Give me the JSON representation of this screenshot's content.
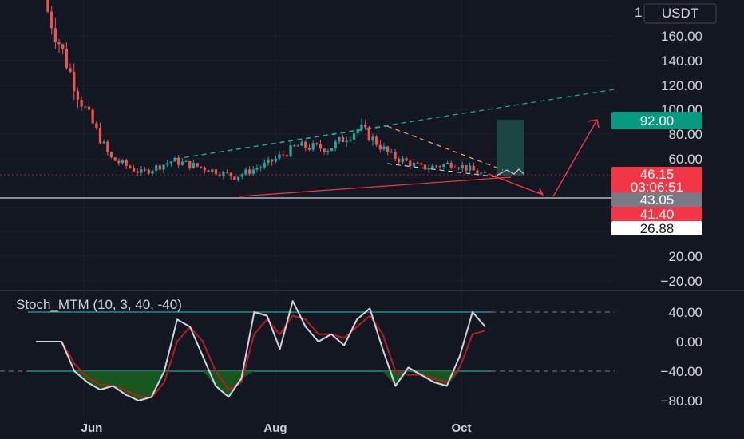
{
  "currency_badge": "USDT",
  "price_axis_top_partial": "1",
  "chart_data": [
    {
      "type": "candlestick",
      "title": "",
      "yticks": [
        "160.00",
        "140.00",
        "120.00",
        "100.00",
        "80.00",
        "60.00",
        "20.00",
        "−20.00",
        "−40.00"
      ],
      "ylim": [
        -50,
        205
      ],
      "xticks": [
        "Jun",
        "Aug",
        "Oct"
      ],
      "price_tags": {
        "target": "92.00",
        "current": "46.15",
        "countdown": "03:06:51",
        "support": "43.05",
        "low": "41.40",
        "bottom": "26.88"
      },
      "colors": {
        "up": "#26a69a",
        "down": "#ef5350",
        "target_tag": "#089981",
        "current_tag": "#f23645",
        "support_tag": "#787b86"
      },
      "series_close_approx": [
        {
          "t": "May-late",
          "close": 180
        },
        {
          "t": "Jun",
          "close": 110
        },
        {
          "t": "Jun-mid",
          "close": 60
        },
        {
          "t": "Jul-early",
          "close": 48
        },
        {
          "t": "Jul-early",
          "close": 58
        },
        {
          "t": "Jul-mid",
          "close": 52
        },
        {
          "t": "Jul-late",
          "close": 45
        },
        {
          "t": "Aug",
          "close": 55
        },
        {
          "t": "Aug-mid",
          "close": 70
        },
        {
          "t": "Sep-early",
          "close": 68
        },
        {
          "t": "Sep-mid",
          "close": 85
        },
        {
          "t": "Sep-mid",
          "close": 62
        },
        {
          "t": "Sep-late",
          "close": 52
        },
        {
          "t": "Oct",
          "close": 56
        },
        {
          "t": "Oct",
          "close": 46.15
        }
      ]
    },
    {
      "type": "line",
      "title": "Stoch_MTM (10, 3, 40, -40)",
      "yticks": [
        "40.00",
        "0.00",
        "−40.00",
        "−80.00"
      ],
      "ylim": [
        -100,
        55
      ],
      "levels": [
        40,
        -40
      ],
      "series": [
        {
          "color": "#d1d4dc",
          "values": [
            0,
            0,
            0,
            -40,
            -55,
            -65,
            -60,
            -72,
            -80,
            -75,
            -40,
            30,
            20,
            -20,
            -60,
            -75,
            -50,
            40,
            35,
            -10,
            55,
            20,
            0,
            10,
            -5,
            30,
            45,
            -10,
            -60,
            -35,
            -45,
            -55,
            -60,
            -20,
            40,
            20
          ]
        },
        {
          "color": "#b71c1c",
          "values": [
            0,
            0,
            0,
            -30,
            -48,
            -58,
            -60,
            -66,
            -74,
            -76,
            -55,
            0,
            20,
            0,
            -40,
            -65,
            -55,
            10,
            30,
            10,
            35,
            30,
            10,
            10,
            5,
            20,
            35,
            10,
            -40,
            -45,
            -45,
            -50,
            -55,
            -35,
            10,
            15
          ]
        }
      ]
    }
  ]
}
